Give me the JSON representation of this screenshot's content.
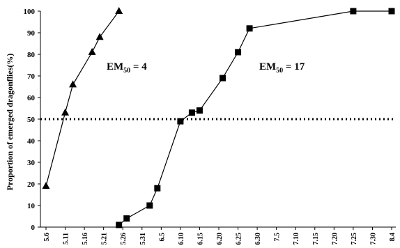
{
  "chart_data": {
    "type": "line",
    "ylabel": "Proportion of emerged dragonflies(%)",
    "xlabel": "",
    "ylim": [
      0,
      100
    ],
    "yticks": [
      "0",
      "10",
      "20",
      "30",
      "40",
      "50",
      "60",
      "70",
      "80",
      "90",
      "100"
    ],
    "categories": [
      "5.6",
      "5.11",
      "5.16",
      "5.21",
      "5.26",
      "5.31",
      "6.5",
      "6.10",
      "6.15",
      "6.20",
      "6.25",
      "6.30",
      "7.5",
      "7.10",
      "7.15",
      "7.20",
      "7.25",
      "7.30",
      "8.4"
    ],
    "series": [
      {
        "marker": "triangle",
        "points": [
          {
            "x": "5.6",
            "y": 19
          },
          {
            "x": "5.11",
            "y": 53
          },
          {
            "x": "5.13",
            "y": 66
          },
          {
            "x": "5.18",
            "y": 81
          },
          {
            "x": "5.20",
            "y": 88
          },
          {
            "x": "5.25",
            "y": 100
          }
        ]
      },
      {
        "marker": "square",
        "points": [
          {
            "x": "5.25",
            "y": 1
          },
          {
            "x": "5.27",
            "y": 4
          },
          {
            "x": "6.2",
            "y": 10
          },
          {
            "x": "6.4",
            "y": 18
          },
          {
            "x": "6.10",
            "y": 49
          },
          {
            "x": "6.13",
            "y": 53
          },
          {
            "x": "6.15",
            "y": 54
          },
          {
            "x": "6.21",
            "y": 69
          },
          {
            "x": "6.25",
            "y": 81
          },
          {
            "x": "6.28",
            "y": 92
          },
          {
            "x": "7.25",
            "y": 100
          },
          {
            "x": "8.4",
            "y": 100
          }
        ]
      }
    ],
    "reference_line": {
      "y": 50,
      "style": "dotted"
    },
    "annotations": [
      {
        "main": "EM",
        "sub": "50",
        "rest": " = 4",
        "near": "series-1"
      },
      {
        "main": "EM",
        "sub": "50",
        "rest": " = 17",
        "near": "series-2"
      }
    ],
    "grid": false,
    "legend": "none"
  }
}
